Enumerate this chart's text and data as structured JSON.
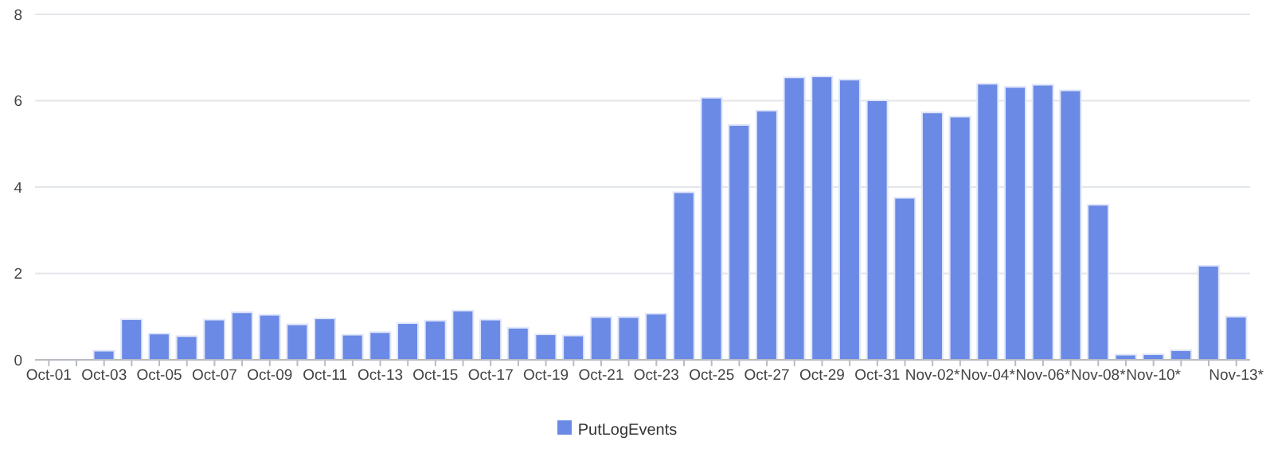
{
  "chart_data": {
    "type": "bar",
    "categories": [
      "Oct-01",
      null,
      "Oct-03",
      null,
      "Oct-05",
      null,
      "Oct-07",
      null,
      "Oct-09",
      null,
      "Oct-11",
      null,
      "Oct-13",
      null,
      "Oct-15",
      null,
      "Oct-17",
      null,
      "Oct-19",
      null,
      "Oct-21",
      null,
      "Oct-23",
      null,
      "Oct-25",
      null,
      "Oct-27",
      null,
      "Oct-29",
      null,
      "Oct-31",
      null,
      "Nov-02*",
      null,
      "Nov-04*",
      null,
      "Nov-06*",
      null,
      "Nov-08*",
      null,
      "Nov-10*",
      null,
      null,
      "Nov-13*"
    ],
    "series": [
      {
        "name": "PutLogEvents",
        "color": "#6b8ae6",
        "values": [
          null,
          null,
          0.21,
          0.94,
          0.61,
          0.55,
          0.93,
          1.1,
          1.04,
          0.82,
          0.96,
          0.58,
          0.64,
          0.85,
          0.91,
          1.14,
          0.93,
          0.74,
          0.59,
          0.56,
          0.99,
          0.99,
          1.07,
          3.88,
          6.07,
          5.44,
          5.77,
          6.54,
          6.56,
          6.49,
          6.01,
          3.75,
          5.73,
          5.63,
          6.39,
          6.32,
          6.37,
          6.24,
          3.59,
          0.12,
          0.13,
          0.22,
          2.18,
          1.0
        ]
      }
    ],
    "ylim": [
      0,
      8
    ],
    "yticks": [
      0,
      2,
      4,
      6,
      8
    ],
    "grid": "y",
    "legend": "bottom"
  }
}
